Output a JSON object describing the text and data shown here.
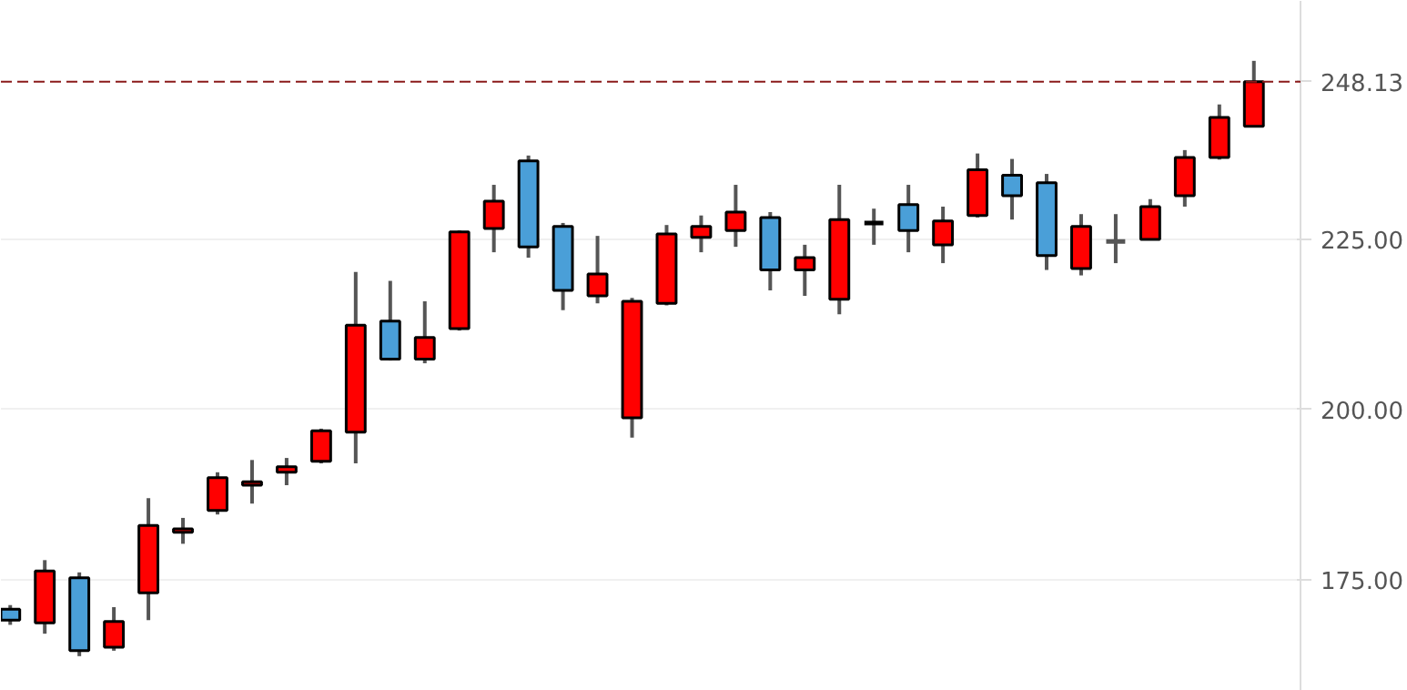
{
  "chart_data": {
    "type": "candlestick",
    "categories": [
      null,
      null,
      null,
      null,
      null,
      null,
      null,
      null,
      null,
      null,
      null,
      null,
      null,
      null,
      null,
      null,
      null,
      null,
      null,
      null,
      null,
      null,
      null,
      null,
      null,
      null,
      null,
      null,
      null,
      null,
      null,
      null,
      null,
      null,
      null,
      null,
      null
    ],
    "ohlc": [
      [
        170.7,
        171.3,
        168.4,
        169.1
      ],
      [
        168.7,
        177.9,
        167.1,
        176.3
      ],
      [
        175.3,
        176.1,
        163.8,
        164.6
      ],
      [
        165.1,
        171.0,
        164.6,
        168.9
      ],
      [
        173.1,
        187.0,
        169.1,
        183.0
      ],
      [
        182.0,
        184.1,
        180.3,
        182.5
      ],
      [
        185.2,
        190.8,
        184.6,
        190.0
      ],
      [
        188.9,
        192.6,
        186.2,
        189.4
      ],
      [
        190.8,
        192.9,
        188.9,
        191.6
      ],
      [
        192.4,
        197.2,
        192.1,
        196.9
      ],
      [
        196.7,
        220.2,
        192.1,
        212.4
      ],
      [
        213.0,
        218.9,
        207.2,
        207.4
      ],
      [
        207.4,
        215.9,
        206.8,
        210.6
      ],
      [
        211.9,
        226.3,
        211.6,
        226.1
      ],
      [
        226.6,
        233.0,
        223.1,
        230.6
      ],
      [
        236.5,
        237.3,
        222.3,
        223.9
      ],
      [
        226.9,
        227.4,
        214.6,
        217.5
      ],
      [
        216.7,
        225.5,
        215.6,
        219.9
      ],
      [
        198.8,
        216.4,
        195.9,
        215.9
      ],
      [
        215.6,
        227.1,
        215.3,
        225.8
      ],
      [
        225.3,
        228.5,
        223.1,
        226.9
      ],
      [
        226.3,
        233.0,
        223.9,
        229.0
      ],
      [
        228.2,
        229.0,
        217.5,
        220.5
      ],
      [
        220.5,
        224.2,
        216.7,
        222.3
      ],
      [
        216.2,
        233.0,
        214.0,
        227.9
      ],
      [
        227.4,
        229.5,
        224.2,
        227.4
      ],
      [
        230.1,
        233.0,
        223.1,
        226.3
      ],
      [
        224.2,
        229.8,
        221.5,
        227.7
      ],
      [
        228.5,
        237.6,
        228.2,
        235.2
      ],
      [
        234.4,
        236.8,
        227.9,
        231.4
      ],
      [
        233.3,
        234.6,
        220.5,
        222.6
      ],
      [
        220.7,
        228.7,
        219.7,
        226.9
      ],
      [
        224.7,
        228.7,
        221.5,
        224.7
      ],
      [
        225.0,
        230.9,
        225.0,
        229.8
      ],
      [
        231.4,
        238.1,
        229.8,
        237.0
      ],
      [
        237.0,
        244.8,
        236.7,
        242.9
      ],
      [
        241.6,
        251.2,
        241.6,
        248.13
      ]
    ],
    "colors": [
      "#4a9fd8",
      "#ff0000",
      "#4a9fd8",
      "#ff0000",
      "#ff0000",
      "#ff0000",
      "#ff0000",
      "#ff0000",
      "#ff0000",
      "#ff0000",
      "#ff0000",
      "#4a9fd8",
      "#ff0000",
      "#ff0000",
      "#ff0000",
      "#4a9fd8",
      "#4a9fd8",
      "#ff0000",
      "#ff0000",
      "#ff0000",
      "#ff0000",
      "#ff0000",
      "#4a9fd8",
      "#ff0000",
      "#ff0000",
      "#000000",
      "#4a9fd8",
      "#ff0000",
      "#ff0000",
      "#4a9fd8",
      "#4a9fd8",
      "#ff0000",
      "#555555",
      "#ff0000",
      "#ff0000",
      "#ff0000",
      "#ff0000"
    ],
    "ylim": [
      158.7,
      260
    ],
    "yticks": [
      {
        "value": 175,
        "label": "175.00"
      },
      {
        "value": 200,
        "label": "200.00"
      },
      {
        "value": 225,
        "label": "225.00"
      }
    ],
    "ref_lines": [
      {
        "axis": "y",
        "value": 248.13,
        "label": "248.13",
        "color": "#8b1a1a",
        "line_style": "dashed"
      }
    ],
    "grid": "y",
    "tick_labels": "y",
    "legend": false
  }
}
